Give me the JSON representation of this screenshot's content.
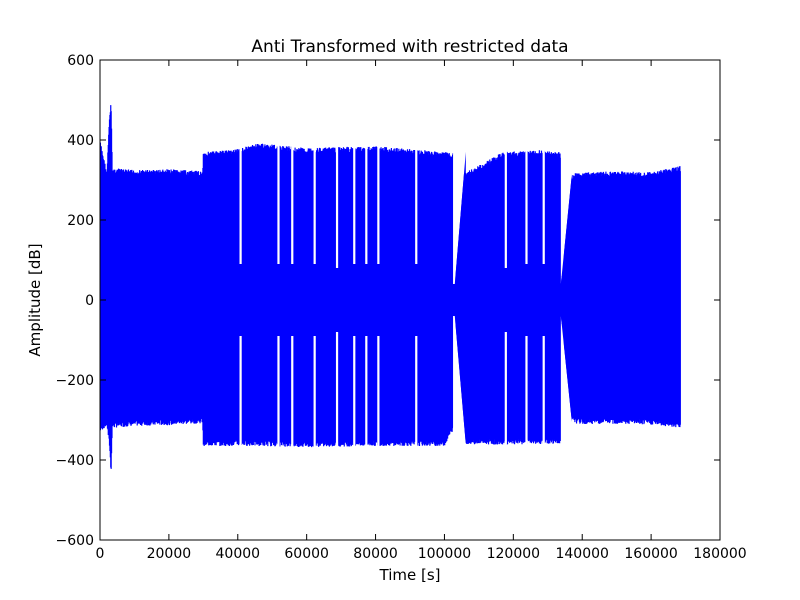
{
  "chart_data": {
    "type": "line",
    "title": "Anti Transformed with restricted data",
    "xlabel": "Time [s]",
    "ylabel": "Amplitude [dB]",
    "xlim": [
      0,
      180000
    ],
    "ylim": [
      -600,
      600
    ],
    "x_ticks": [
      0,
      20000,
      40000,
      60000,
      80000,
      100000,
      120000,
      140000,
      160000,
      180000
    ],
    "x_tick_labels": [
      "0",
      "20000",
      "40000",
      "60000",
      "80000",
      "100000",
      "120000",
      "140000",
      "160000",
      "180000"
    ],
    "y_ticks": [
      -600,
      -400,
      -200,
      0,
      200,
      400,
      600
    ],
    "y_tick_labels": [
      "−600",
      "−400",
      "−200",
      "0",
      "200",
      "400",
      "600"
    ],
    "grid": false,
    "legend": "none",
    "series_color": "#0000ff",
    "envelope": [
      {
        "x": 0,
        "upper": 400,
        "lower": -330
      },
      {
        "x": 2000,
        "upper": 320,
        "lower": -315
      },
      {
        "x": 2800,
        "upper": 465,
        "lower": -370
      },
      {
        "x": 3200,
        "upper": 495,
        "lower": -435
      },
      {
        "x": 3600,
        "upper": 330,
        "lower": -320
      },
      {
        "x": 10000,
        "upper": 325,
        "lower": -315
      },
      {
        "x": 20000,
        "upper": 327,
        "lower": -313
      },
      {
        "x": 29800,
        "upper": 322,
        "lower": -308
      },
      {
        "x": 30000,
        "upper": 370,
        "lower": -365
      },
      {
        "x": 40000,
        "upper": 378,
        "lower": -365
      },
      {
        "x": 46000,
        "upper": 392,
        "lower": -365
      },
      {
        "x": 60000,
        "upper": 380,
        "lower": -368
      },
      {
        "x": 80000,
        "upper": 385,
        "lower": -365
      },
      {
        "x": 100000,
        "upper": 370,
        "lower": -365
      },
      {
        "x": 103000,
        "upper": 368,
        "lower": -318
      },
      {
        "x": 106000,
        "upper": 318,
        "lower": -360
      },
      {
        "x": 117000,
        "upper": 370,
        "lower": -362
      },
      {
        "x": 128000,
        "upper": 375,
        "lower": -360
      },
      {
        "x": 133500,
        "upper": 370,
        "lower": -360
      },
      {
        "x": 136500,
        "upper": 308,
        "lower": -298
      },
      {
        "x": 138000,
        "upper": 318,
        "lower": -310
      },
      {
        "x": 150000,
        "upper": 322,
        "lower": -310
      },
      {
        "x": 160000,
        "upper": 320,
        "lower": -312
      },
      {
        "x": 168500,
        "upper": 335,
        "lower": -320
      },
      {
        "x": 169000,
        "upper": 0,
        "lower": 0
      }
    ],
    "dropouts": [
      {
        "x": 40500,
        "width": 300,
        "inner": 90
      },
      {
        "x": 51500,
        "width": 500,
        "inner": 90
      },
      {
        "x": 55500,
        "width": 400,
        "inner": 90
      },
      {
        "x": 62000,
        "width": 500,
        "inner": 90
      },
      {
        "x": 68500,
        "width": 500,
        "inner": 80
      },
      {
        "x": 73500,
        "width": 500,
        "inner": 90
      },
      {
        "x": 77000,
        "width": 400,
        "inner": 90
      },
      {
        "x": 80500,
        "width": 400,
        "inner": 90
      },
      {
        "x": 91500,
        "width": 500,
        "inner": 90
      },
      {
        "x": 102500,
        "width": 500,
        "inner": 40
      },
      {
        "x": 117500,
        "width": 500,
        "inner": 80
      },
      {
        "x": 123500,
        "width": 500,
        "inner": 90
      },
      {
        "x": 128500,
        "width": 500,
        "inner": 90
      },
      {
        "x": 134000,
        "width": 300,
        "inner": 60
      }
    ],
    "drift_spans": [
      {
        "x0": 103000,
        "x1": 106200,
        "upper0": 40,
        "upper1": 370,
        "lower0": -40,
        "lower1": -360
      },
      {
        "x0": 133800,
        "x1": 137000,
        "upper0": 40,
        "upper1": 315,
        "lower0": -40,
        "lower1": -305
      }
    ]
  }
}
